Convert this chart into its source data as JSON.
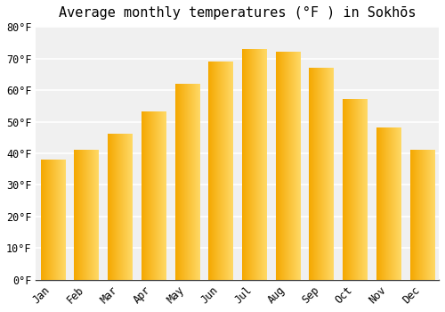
{
  "title": "Average monthly temperatures (°F ) in Sokhōs",
  "months": [
    "Jan",
    "Feb",
    "Mar",
    "Apr",
    "May",
    "Jun",
    "Jul",
    "Aug",
    "Sep",
    "Oct",
    "Nov",
    "Dec"
  ],
  "values": [
    38,
    41,
    46,
    53,
    62,
    69,
    73,
    72,
    67,
    57,
    48,
    41
  ],
  "bar_color_left": "#F5A800",
  "bar_color_right": "#FFD966",
  "ylim": [
    0,
    80
  ],
  "yticks": [
    0,
    10,
    20,
    30,
    40,
    50,
    60,
    70,
    80
  ],
  "background_color": "#ffffff",
  "plot_bg_color": "#f0f0f0",
  "grid_color": "#ffffff",
  "title_fontsize": 11,
  "tick_fontsize": 8.5
}
